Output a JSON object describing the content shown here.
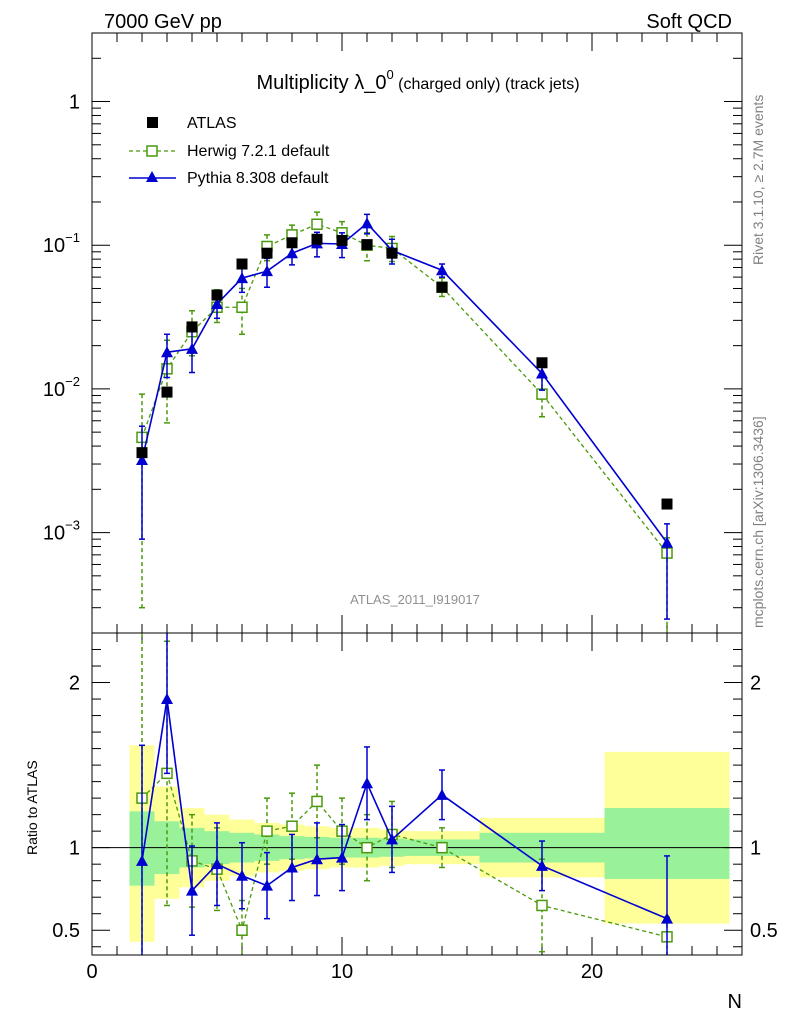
{
  "header": {
    "left": "7000 GeV pp",
    "right": "Soft QCD"
  },
  "side_labels": {
    "rivet": "Rivet 3.1.10, ≥ 2.7M events",
    "mcplots": "mcplots.cern.ch [arXiv:1306.3436]"
  },
  "chart_data": {
    "type": "scatter",
    "title": {
      "main": "Multiplicity λ_0",
      "sup": "0",
      "suffix": " (charged only) (track jets)"
    },
    "analysis_id": "ATLAS_2011_I919017",
    "xlabel": "N",
    "ylabel_ratio": "Ratio to ATLAS",
    "xlim": [
      0,
      26
    ],
    "ylim": [
      0.0002,
      3
    ],
    "yscale": "log",
    "ratio_ylim": [
      0.35,
      2.3
    ],
    "x_ticks": [
      0,
      10,
      20
    ],
    "y_ticks": [
      {
        "value": 1,
        "base": "1",
        "exp": ""
      },
      {
        "value": 0.1,
        "base": "10",
        "exp": "−1"
      },
      {
        "value": 0.01,
        "base": "10",
        "exp": "−2"
      },
      {
        "value": 0.001,
        "base": "10",
        "exp": "−3"
      }
    ],
    "ratio_ticks": [
      {
        "value": 0.5,
        "label": "0.5"
      },
      {
        "value": 1,
        "label": "1"
      },
      {
        "value": 2,
        "label": "2"
      }
    ],
    "legend": [
      {
        "name": "ATLAS",
        "color": "#000000",
        "marker": "square-filled"
      },
      {
        "name": "Herwig 7.2.1 default",
        "color": "#4a9a0c",
        "marker": "square-open"
      },
      {
        "name": "Pythia 8.308 default",
        "color": "#0000d0",
        "marker": "triangle"
      }
    ],
    "data_x": [
      2,
      3,
      4,
      5,
      6,
      7,
      8,
      9,
      10,
      11,
      12,
      14,
      18,
      23
    ],
    "data_y": [
      0.0036,
      0.0095,
      0.027,
      0.045,
      0.074,
      0.088,
      0.104,
      0.11,
      0.108,
      0.101,
      0.088,
      0.051,
      0.0152,
      0.00158
    ],
    "series": [
      {
        "name": "Herwig 7.2.1 default",
        "x": [
          2,
          3,
          4,
          5,
          6,
          7,
          8,
          9,
          10,
          11,
          12,
          14,
          18,
          23
        ],
        "y": [
          0.0046,
          0.0138,
          0.025,
          0.037,
          0.037,
          0.098,
          0.118,
          0.14,
          0.122,
          0.1,
          0.095,
          0.051,
          0.0092,
          0.00072
        ],
        "err_lo": [
          0.0043,
          0.008,
          0.008,
          0.008,
          0.013,
          0.02,
          0.02,
          0.025,
          0.022,
          0.022,
          0.018,
          0.007,
          0.0028,
          0.0006
        ],
        "err_hi": [
          0.0046,
          0.008,
          0.01,
          0.012,
          0.013,
          0.02,
          0.02,
          0.03,
          0.024,
          0.022,
          0.02,
          0.008,
          0.0028,
          0.0002
        ],
        "ratio": [
          1.3,
          1.45,
          0.92,
          0.87,
          0.5,
          1.1,
          1.13,
          1.28,
          1.1,
          1.0,
          1.08,
          1.0,
          0.65,
          0.46
        ],
        "ratio_err": [
          1.0,
          0.8,
          0.28,
          0.25,
          0.18,
          0.2,
          0.2,
          0.22,
          0.2,
          0.2,
          0.2,
          0.12,
          0.28,
          0.12
        ]
      },
      {
        "name": "Pythia 8.308 default",
        "x": [
          2,
          3,
          4,
          5,
          6,
          7,
          8,
          9,
          10,
          11,
          12,
          14,
          18,
          23
        ],
        "y": [
          0.0032,
          0.018,
          0.019,
          0.039,
          0.059,
          0.066,
          0.088,
          0.103,
          0.102,
          0.142,
          0.092,
          0.067,
          0.0128,
          0.00085
        ],
        "err_lo": [
          0.0023,
          0.006,
          0.006,
          0.008,
          0.012,
          0.015,
          0.015,
          0.02,
          0.02,
          0.022,
          0.018,
          0.007,
          0.003,
          0.0006
        ],
        "err_hi": [
          0.0023,
          0.006,
          0.006,
          0.008,
          0.012,
          0.015,
          0.015,
          0.02,
          0.02,
          0.022,
          0.018,
          0.007,
          0.003,
          0.0003
        ],
        "ratio": [
          0.92,
          1.9,
          0.74,
          0.9,
          0.83,
          0.77,
          0.88,
          0.93,
          0.94,
          1.39,
          1.05,
          1.32,
          0.89,
          0.57
        ],
        "ratio_err": [
          0.7,
          0.45,
          0.27,
          0.25,
          0.2,
          0.2,
          0.2,
          0.22,
          0.2,
          0.22,
          0.2,
          0.15,
          0.15,
          0.38
        ]
      }
    ],
    "ratio_bands": [
      {
        "x0": 1.5,
        "x1": 2.5,
        "yellow": [
          0.43,
          1.62
        ],
        "green": [
          0.77,
          1.22
        ]
      },
      {
        "x0": 2.5,
        "x1": 3.5,
        "yellow": [
          0.69,
          1.37
        ],
        "green": [
          0.84,
          1.16
        ]
      },
      {
        "x0": 3.5,
        "x1": 4.5,
        "yellow": [
          0.76,
          1.24
        ],
        "green": [
          0.88,
          1.12
        ]
      },
      {
        "x0": 4.5,
        "x1": 5.5,
        "yellow": [
          0.8,
          1.2
        ],
        "green": [
          0.9,
          1.1
        ]
      },
      {
        "x0": 5.5,
        "x1": 6.5,
        "yellow": [
          0.83,
          1.17
        ],
        "green": [
          0.91,
          1.09
        ]
      },
      {
        "x0": 6.5,
        "x1": 7.5,
        "yellow": [
          0.85,
          1.15
        ],
        "green": [
          0.92,
          1.08
        ]
      },
      {
        "x0": 7.5,
        "x1": 8.5,
        "yellow": [
          0.86,
          1.14
        ],
        "green": [
          0.93,
          1.07
        ]
      },
      {
        "x0": 8.5,
        "x1": 9.5,
        "yellow": [
          0.87,
          1.13
        ],
        "green": [
          0.935,
          1.065
        ]
      },
      {
        "x0": 9.5,
        "x1": 10.5,
        "yellow": [
          0.88,
          1.12
        ],
        "green": [
          0.94,
          1.06
        ]
      },
      {
        "x0": 10.5,
        "x1": 11.5,
        "yellow": [
          0.88,
          1.12
        ],
        "green": [
          0.94,
          1.06
        ]
      },
      {
        "x0": 11.5,
        "x1": 12.5,
        "yellow": [
          0.89,
          1.11
        ],
        "green": [
          0.945,
          1.055
        ]
      },
      {
        "x0": 12.5,
        "x1": 15.5,
        "yellow": [
          0.9,
          1.1
        ],
        "green": [
          0.95,
          1.05
        ]
      },
      {
        "x0": 15.5,
        "x1": 20.5,
        "yellow": [
          0.82,
          1.18
        ],
        "green": [
          0.91,
          1.09
        ]
      },
      {
        "x0": 20.5,
        "x1": 25.5,
        "yellow": [
          0.54,
          1.58
        ],
        "green": [
          0.81,
          1.24
        ]
      }
    ]
  }
}
